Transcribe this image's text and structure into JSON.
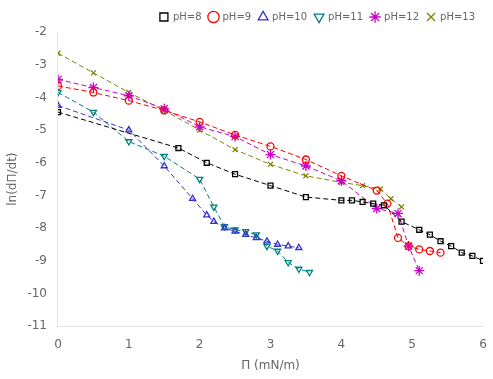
{
  "chart_data": {
    "type": "line",
    "title": "",
    "x_label": "Π (mN/m)",
    "y_label": "ln(dΠ/dt)",
    "xlim": [
      0,
      6
    ],
    "ylim": [
      -11,
      -2
    ],
    "xticks": [
      0,
      1,
      2,
      3,
      4,
      5,
      6
    ],
    "yticks": [
      -11,
      -10,
      -9,
      -8,
      -7,
      -6,
      -5,
      -4,
      -3,
      -2
    ],
    "grid": false,
    "legend": "upper right",
    "series": [
      {
        "name": "pH=8",
        "color": "black",
        "marker": "square",
        "line_style": "dashed",
        "x": [
          0.0,
          1.7,
          2.1,
          2.5,
          3.0,
          3.5,
          4.0,
          4.15,
          4.3,
          4.45,
          4.6,
          4.85,
          5.1,
          5.25,
          5.4,
          5.55,
          5.7,
          5.85,
          6.0
        ],
        "values": [
          -4.45,
          -5.55,
          -6.0,
          -6.35,
          -6.7,
          -7.05,
          -7.15,
          -7.15,
          -7.2,
          -7.25,
          -7.3,
          -7.8,
          -8.05,
          -8.2,
          -8.4,
          -8.55,
          -8.75,
          -8.85,
          -9.0
        ]
      },
      {
        "name": "pH=9",
        "color": "#ff0000",
        "marker": "circle",
        "line_style": "dashed",
        "x": [
          0.0,
          0.5,
          1.0,
          1.5,
          2.0,
          2.5,
          3.0,
          3.5,
          4.0,
          4.5,
          4.65,
          4.8,
          4.95,
          5.1,
          5.25,
          5.4
        ],
        "values": [
          -3.65,
          -3.85,
          -4.1,
          -4.4,
          -4.75,
          -5.15,
          -5.5,
          -5.9,
          -6.4,
          -6.85,
          -7.25,
          -8.3,
          -8.55,
          -8.65,
          -8.7,
          -8.75
        ]
      },
      {
        "name": "pH=10",
        "color": "#3333cc",
        "marker": "triangle",
        "line_style": "dashed",
        "x": [
          0.0,
          1.0,
          1.5,
          1.9,
          2.1,
          2.2,
          2.35,
          2.5,
          2.65,
          2.8,
          2.95,
          3.1,
          3.25,
          3.4
        ],
        "values": [
          -4.25,
          -5.0,
          -6.1,
          -7.1,
          -7.6,
          -7.8,
          -8.0,
          -8.1,
          -8.2,
          -8.3,
          -8.4,
          -8.5,
          -8.55,
          -8.6
        ]
      },
      {
        "name": "pH=11",
        "color": "#008080",
        "marker": "triangle_down",
        "line_style": "dashed",
        "x": [
          0.0,
          0.5,
          1.0,
          1.5,
          2.0,
          2.2,
          2.35,
          2.5,
          2.65,
          2.8,
          2.95,
          3.1,
          3.25,
          3.4,
          3.55
        ],
        "values": [
          -3.85,
          -4.45,
          -5.35,
          -5.8,
          -6.5,
          -7.35,
          -7.95,
          -8.05,
          -8.1,
          -8.2,
          -8.55,
          -8.7,
          -9.05,
          -9.25,
          -9.35
        ]
      },
      {
        "name": "pH=12",
        "color": "#cc00cc",
        "marker": "star",
        "line_style": "dashed",
        "x": [
          0.0,
          0.5,
          1.0,
          1.5,
          2.0,
          2.5,
          3.0,
          3.5,
          4.0,
          4.5,
          4.8,
          4.95,
          5.1
        ],
        "values": [
          -3.45,
          -3.7,
          -3.95,
          -4.35,
          -4.9,
          -5.2,
          -5.75,
          -6.1,
          -6.55,
          -7.4,
          -7.55,
          -8.55,
          -9.3
        ]
      },
      {
        "name": "pH=13",
        "color": "#808000",
        "marker": "x",
        "line_style": "dashed",
        "x": [
          0.0,
          0.5,
          1.0,
          1.5,
          2.0,
          2.5,
          3.0,
          3.5,
          4.0,
          4.3,
          4.55,
          4.7,
          4.85
        ],
        "values": [
          -2.65,
          -3.25,
          -3.85,
          -4.4,
          -5.0,
          -5.6,
          -6.05,
          -6.4,
          -6.6,
          -6.7,
          -6.8,
          -7.1,
          -7.35
        ]
      }
    ]
  }
}
